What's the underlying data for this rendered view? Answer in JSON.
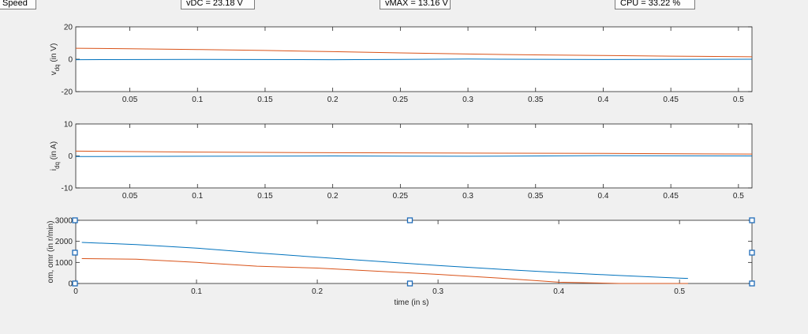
{
  "status": {
    "speed_label": "Speed",
    "vdc": "vDC = 23.18 V",
    "vmax": "vMAX = 13.16 V",
    "cpu": "CPU = 33.22 %"
  },
  "chart_data": [
    {
      "type": "line",
      "ylabel_main": "v",
      "ylabel_sub": "dq",
      "ylabel_unit": " (in V)",
      "xlim": [
        0.01,
        0.51
      ],
      "ylim": [
        -20,
        20
      ],
      "xticks": [
        0.05,
        0.1,
        0.15,
        0.2,
        0.25,
        0.3,
        0.35,
        0.4,
        0.45,
        0.5
      ],
      "xtick_labels": [
        "0.05",
        "0.1",
        "0.15",
        "0.2",
        "0.25",
        "0.3",
        "0.35",
        "0.4",
        "0.45",
        "0.5"
      ],
      "yticks": [
        -20,
        0,
        20
      ],
      "ytick_labels": [
        "-20",
        "0",
        "20"
      ],
      "series": [
        {
          "color": "#0072bd",
          "x": [
            0.01,
            0.1,
            0.2,
            0.3,
            0.4,
            0.51
          ],
          "y": [
            -0.3,
            -0.1,
            -0.3,
            0.1,
            -0.2,
            0.0
          ]
        },
        {
          "color": "#d95319",
          "x": [
            0.01,
            0.05,
            0.1,
            0.15,
            0.2,
            0.25,
            0.3,
            0.35,
            0.4,
            0.45,
            0.51
          ],
          "y": [
            6.8,
            6.5,
            6.0,
            5.4,
            4.7,
            3.9,
            3.2,
            2.7,
            2.3,
            1.9,
            1.5
          ]
        }
      ]
    },
    {
      "type": "line",
      "ylabel_main": "i",
      "ylabel_sub": "dq",
      "ylabel_unit": " (in A)",
      "xlim": [
        0.01,
        0.51
      ],
      "ylim": [
        -10,
        10
      ],
      "xticks": [
        0.05,
        0.1,
        0.15,
        0.2,
        0.25,
        0.3,
        0.35,
        0.4,
        0.45,
        0.5
      ],
      "xtick_labels": [
        "0.05",
        "0.1",
        "0.15",
        "0.2",
        "0.25",
        "0.3",
        "0.35",
        "0.4",
        "0.45",
        "0.5"
      ],
      "yticks": [
        -10,
        0,
        10
      ],
      "ytick_labels": [
        "-10",
        "0",
        "10"
      ],
      "series": [
        {
          "color": "#0072bd",
          "x": [
            0.01,
            0.1,
            0.2,
            0.3,
            0.4,
            0.51
          ],
          "y": [
            -0.2,
            -0.1,
            0.0,
            -0.1,
            0.1,
            0.0
          ]
        },
        {
          "color": "#d95319",
          "x": [
            0.01,
            0.1,
            0.2,
            0.3,
            0.4,
            0.51
          ],
          "y": [
            1.5,
            1.2,
            1.0,
            0.9,
            0.8,
            0.6
          ]
        }
      ]
    },
    {
      "type": "line",
      "ylabel_main": "om, omr (in r/min)",
      "xlabel": "time (in s)",
      "xlim": [
        0,
        0.56
      ],
      "ylim": [
        0,
        3000
      ],
      "xticks": [
        0,
        0.1,
        0.2,
        0.3,
        0.4,
        0.5
      ],
      "xtick_labels": [
        "0",
        "0.1",
        "0.2",
        "0.3",
        "0.4",
        "0.5"
      ],
      "yticks": [
        0,
        1000,
        2000,
        3000
      ],
      "ytick_labels": [
        "0",
        "1000",
        "2000",
        "3000"
      ],
      "selected": true,
      "series": [
        {
          "color": "#0072bd",
          "x": [
            0.005,
            0.05,
            0.1,
            0.15,
            0.2,
            0.25,
            0.3,
            0.35,
            0.4,
            0.45,
            0.5,
            0.507
          ],
          "y": [
            1950,
            1850,
            1680,
            1450,
            1250,
            1050,
            850,
            680,
            520,
            380,
            250,
            240
          ]
        },
        {
          "color": "#d95319",
          "x": [
            0.005,
            0.05,
            0.1,
            0.15,
            0.2,
            0.25,
            0.3,
            0.35,
            0.4,
            0.45,
            0.5,
            0.507
          ],
          "y": [
            1180,
            1150,
            1000,
            820,
            730,
            580,
            430,
            260,
            60,
            0,
            0,
            0
          ]
        }
      ]
    }
  ]
}
